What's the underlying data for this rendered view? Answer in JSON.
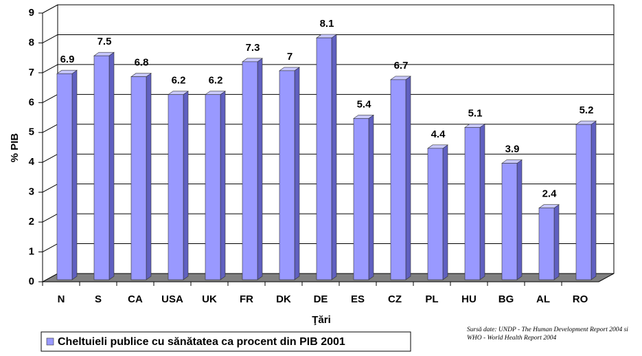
{
  "chart_data": {
    "type": "bar",
    "categories": [
      "N",
      "S",
      "CA",
      "USA",
      "UK",
      "FR",
      "DK",
      "DE",
      "ES",
      "CZ",
      "PL",
      "HU",
      "BG",
      "AL",
      "RO"
    ],
    "series": [
      {
        "name": "Cheltuieli publice cu sănătatea ca procent din PIB 2001",
        "color": "#9999ff",
        "values": [
          6.9,
          7.5,
          6.8,
          6.2,
          6.2,
          7.3,
          7,
          8.1,
          5.4,
          6.7,
          4.4,
          5.1,
          3.9,
          2.4,
          5.2
        ]
      }
    ],
    "ylim": [
      0,
      9
    ],
    "yticks": [
      0,
      1,
      2,
      3,
      4,
      5,
      6,
      7,
      8,
      9
    ],
    "y_label": "% PIB",
    "x_label": "Ţări",
    "grid": true,
    "legend": "bottom-left",
    "annotation": "Sursă date: UNDP - The Human Development Report 2004 si WHO - World Health Report 2004"
  }
}
